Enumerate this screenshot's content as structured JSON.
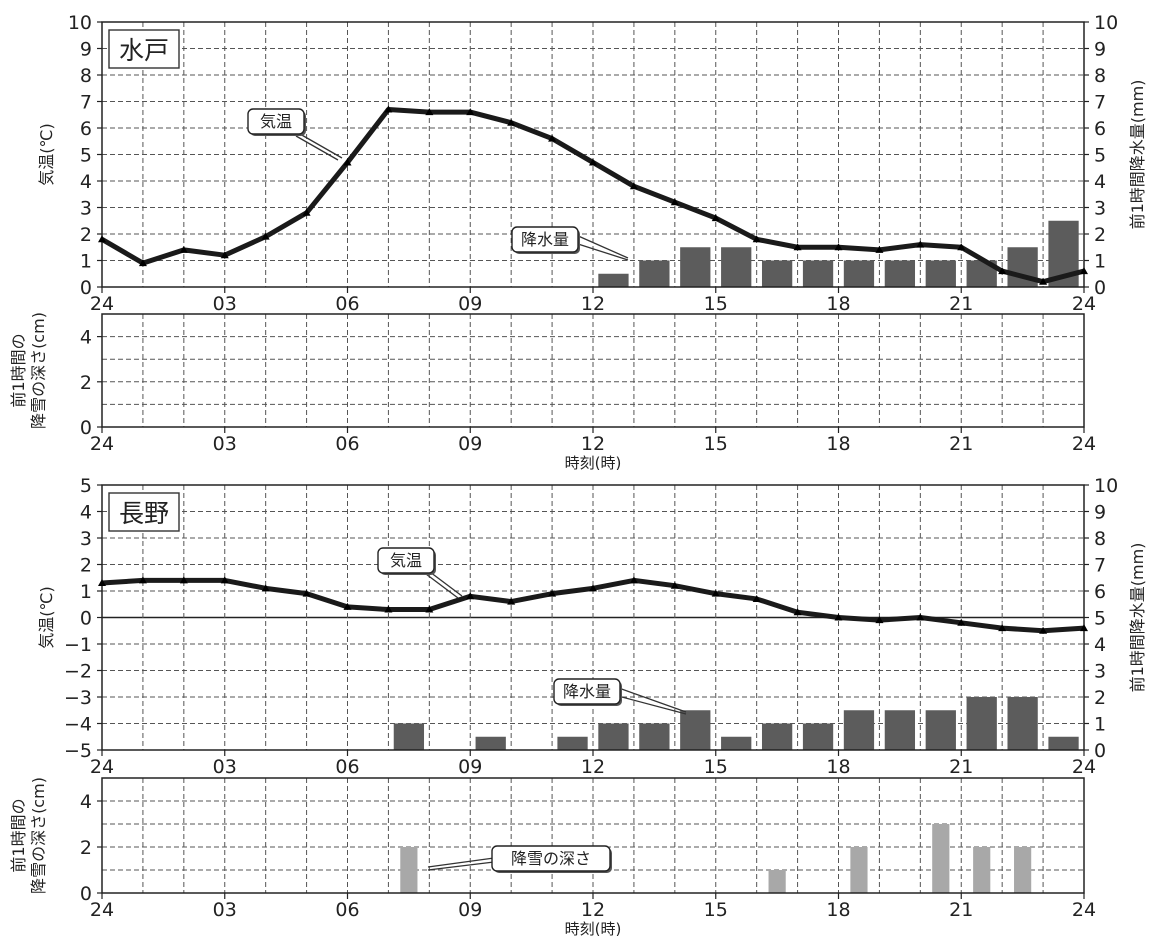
{
  "figure": {
    "x_tick_labels": [
      "24",
      "03",
      "06",
      "09",
      "12",
      "15",
      "18",
      "21",
      "24"
    ],
    "x_axis_label": "時刻(時)",
    "temp_axis_label": "気温(℃)",
    "precip_axis_label": "前1時間降水量(mm)",
    "snow_axis_label": [
      "前1時間の",
      "降雪の深さ(cm)"
    ]
  },
  "chart_data": [
    {
      "type": "line+bar",
      "station": "水戸",
      "x_hours": [
        0,
        1,
        2,
        3,
        4,
        5,
        6,
        7,
        8,
        9,
        10,
        11,
        12,
        13,
        14,
        15,
        16,
        17,
        18,
        19,
        20,
        21,
        22,
        23,
        24
      ],
      "temperature": [
        1.8,
        0.9,
        1.4,
        1.2,
        1.9,
        2.8,
        4.7,
        6.7,
        6.6,
        6.6,
        6.2,
        5.6,
        4.7,
        3.8,
        3.2,
        2.6,
        1.8,
        1.5,
        1.5,
        1.4,
        1.6,
        1.5,
        0.6,
        0.2,
        0.6
      ],
      "temp_ylim": [
        0,
        10
      ],
      "temp_ticks": [
        0,
        1,
        2,
        3,
        4,
        5,
        6,
        7,
        8,
        9,
        10
      ],
      "precip_hours": [
        13,
        14,
        15,
        16,
        17,
        18,
        19,
        20,
        21,
        22,
        23,
        24
      ],
      "precipitation": [
        0.5,
        1,
        1.5,
        1.5,
        1,
        1,
        1,
        1,
        1,
        1,
        1.5,
        2.5
      ],
      "precip_ylim": [
        0,
        10
      ],
      "precip_ticks": [
        0,
        1,
        2,
        3,
        4,
        5,
        6,
        7,
        8,
        9,
        10
      ],
      "annotations": {
        "temp_label": "気温",
        "precip_label": "降水量"
      }
    },
    {
      "type": "bar",
      "station": "水戸",
      "series_name": "前1時間の降雪の深さ",
      "snow_hours": [],
      "snowfall": [],
      "ylim": [
        0,
        5
      ],
      "ticks": [
        0,
        2,
        4
      ]
    },
    {
      "type": "line+bar",
      "station": "長野",
      "x_hours": [
        0,
        1,
        2,
        3,
        4,
        5,
        6,
        7,
        8,
        9,
        10,
        11,
        12,
        13,
        14,
        15,
        16,
        17,
        18,
        19,
        20,
        21,
        22,
        23,
        24
      ],
      "temperature": [
        1.3,
        1.4,
        1.4,
        1.4,
        1.1,
        0.9,
        0.4,
        0.3,
        0.3,
        0.8,
        0.6,
        0.9,
        1.1,
        1.4,
        1.2,
        0.9,
        0.7,
        0.2,
        0.0,
        -0.1,
        0.0,
        -0.2,
        -0.4,
        -0.5,
        -0.4
      ],
      "temp_ylim": [
        -5,
        5
      ],
      "temp_ticks": [
        -5,
        -4,
        -3,
        -2,
        -1,
        0,
        1,
        2,
        3,
        4,
        5
      ],
      "precip_hours": [
        8,
        10,
        12,
        13,
        14,
        15,
        16,
        17,
        18,
        19,
        20,
        21,
        22,
        23,
        24
      ],
      "precipitation": [
        1,
        0.5,
        0.5,
        1,
        1,
        1.5,
        0.5,
        1,
        1,
        1.5,
        1.5,
        1.5,
        2,
        2,
        0.5
      ],
      "precip_ylim": [
        0,
        10
      ],
      "precip_ticks": [
        0,
        1,
        2,
        3,
        4,
        5,
        6,
        7,
        8,
        9,
        10
      ],
      "annotations": {
        "temp_label": "気温",
        "precip_label": "降水量"
      }
    },
    {
      "type": "bar",
      "station": "長野",
      "series_name": "前1時間の降雪の深さ",
      "snow_hours": [
        8,
        17,
        19,
        21,
        22,
        23
      ],
      "snowfall": [
        2,
        1,
        2,
        3,
        2,
        2
      ],
      "ylim": [
        0,
        5
      ],
      "ticks": [
        0,
        2,
        4
      ],
      "annotations": {
        "snow_label": "降雪の深さ"
      }
    }
  ],
  "colors": {
    "temp_line": "#1a1a1a",
    "precip_bar": "#5c5c5c",
    "snow_bar": "#a8a8a8",
    "grid": "#555555"
  }
}
